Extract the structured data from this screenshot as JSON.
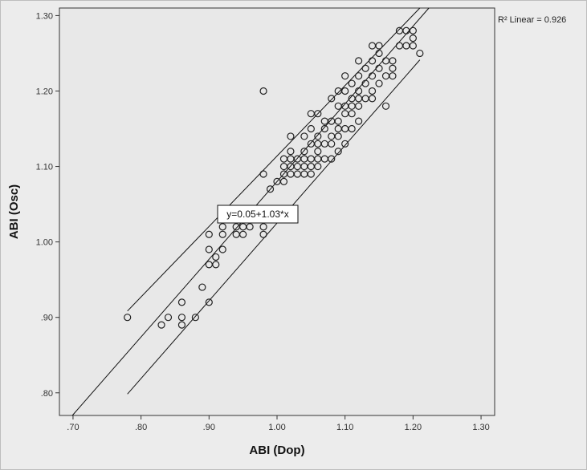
{
  "chart_data": {
    "type": "scatter",
    "xlabel": "ABI (Dop)",
    "ylabel": "ABI (Osc)",
    "xlim": [
      0.68,
      1.32
    ],
    "ylim": [
      0.77,
      1.31
    ],
    "x_ticks": [
      ".70",
      ".80",
      ".90",
      "1.00",
      "1.10",
      "1.20",
      "1.30"
    ],
    "y_ticks": [
      ".80",
      ".90",
      "1.00",
      "1.10",
      "1.20",
      "1.30"
    ],
    "r2_text": "R² Linear = 0.926",
    "equation": "y=0.05+1.03*x",
    "fit": {
      "intercept": 0.05,
      "slope": 1.03
    },
    "ci_offset": 0.055,
    "ci_x_range": [
      0.78,
      1.21
    ],
    "grid": false,
    "points": [
      [
        0.78,
        0.9
      ],
      [
        0.83,
        0.89
      ],
      [
        0.84,
        0.9
      ],
      [
        0.86,
        0.89
      ],
      [
        0.86,
        0.9
      ],
      [
        0.86,
        0.92
      ],
      [
        0.88,
        0.9
      ],
      [
        0.89,
        0.94
      ],
      [
        0.9,
        0.92
      ],
      [
        0.9,
        0.97
      ],
      [
        0.9,
        0.99
      ],
      [
        0.9,
        1.01
      ],
      [
        0.91,
        0.97
      ],
      [
        0.91,
        0.98
      ],
      [
        0.92,
        0.99
      ],
      [
        0.92,
        1.01
      ],
      [
        0.92,
        1.02
      ],
      [
        0.94,
        1.01
      ],
      [
        0.94,
        1.02
      ],
      [
        0.95,
        1.01
      ],
      [
        0.95,
        1.02
      ],
      [
        0.96,
        1.02
      ],
      [
        0.96,
        1.03
      ],
      [
        0.97,
        1.03
      ],
      [
        0.98,
        1.01
      ],
      [
        0.98,
        1.02
      ],
      [
        0.98,
        1.09
      ],
      [
        0.98,
        1.2
      ],
      [
        0.99,
        1.03
      ],
      [
        0.99,
        1.07
      ],
      [
        1.0,
        1.08
      ],
      [
        1.01,
        1.08
      ],
      [
        1.01,
        1.09
      ],
      [
        1.01,
        1.1
      ],
      [
        1.01,
        1.11
      ],
      [
        1.02,
        1.09
      ],
      [
        1.02,
        1.1
      ],
      [
        1.02,
        1.11
      ],
      [
        1.02,
        1.12
      ],
      [
        1.02,
        1.14
      ],
      [
        1.03,
        1.09
      ],
      [
        1.03,
        1.1
      ],
      [
        1.03,
        1.11
      ],
      [
        1.04,
        1.09
      ],
      [
        1.04,
        1.1
      ],
      [
        1.04,
        1.11
      ],
      [
        1.04,
        1.12
      ],
      [
        1.04,
        1.14
      ],
      [
        1.05,
        1.09
      ],
      [
        1.05,
        1.1
      ],
      [
        1.05,
        1.11
      ],
      [
        1.05,
        1.13
      ],
      [
        1.05,
        1.15
      ],
      [
        1.05,
        1.17
      ],
      [
        1.06,
        1.1
      ],
      [
        1.06,
        1.11
      ],
      [
        1.06,
        1.12
      ],
      [
        1.06,
        1.13
      ],
      [
        1.06,
        1.14
      ],
      [
        1.06,
        1.17
      ],
      [
        1.07,
        1.11
      ],
      [
        1.07,
        1.13
      ],
      [
        1.07,
        1.15
      ],
      [
        1.07,
        1.16
      ],
      [
        1.08,
        1.11
      ],
      [
        1.08,
        1.13
      ],
      [
        1.08,
        1.14
      ],
      [
        1.08,
        1.16
      ],
      [
        1.08,
        1.19
      ],
      [
        1.09,
        1.12
      ],
      [
        1.09,
        1.14
      ],
      [
        1.09,
        1.15
      ],
      [
        1.09,
        1.16
      ],
      [
        1.09,
        1.18
      ],
      [
        1.09,
        1.2
      ],
      [
        1.1,
        1.13
      ],
      [
        1.1,
        1.15
      ],
      [
        1.1,
        1.17
      ],
      [
        1.1,
        1.18
      ],
      [
        1.1,
        1.2
      ],
      [
        1.1,
        1.22
      ],
      [
        1.11,
        1.15
      ],
      [
        1.11,
        1.17
      ],
      [
        1.11,
        1.18
      ],
      [
        1.11,
        1.19
      ],
      [
        1.11,
        1.21
      ],
      [
        1.12,
        1.16
      ],
      [
        1.12,
        1.18
      ],
      [
        1.12,
        1.19
      ],
      [
        1.12,
        1.2
      ],
      [
        1.12,
        1.22
      ],
      [
        1.12,
        1.24
      ],
      [
        1.13,
        1.19
      ],
      [
        1.13,
        1.21
      ],
      [
        1.13,
        1.23
      ],
      [
        1.14,
        1.19
      ],
      [
        1.14,
        1.2
      ],
      [
        1.14,
        1.22
      ],
      [
        1.14,
        1.24
      ],
      [
        1.14,
        1.26
      ],
      [
        1.15,
        1.21
      ],
      [
        1.15,
        1.23
      ],
      [
        1.15,
        1.25
      ],
      [
        1.15,
        1.26
      ],
      [
        1.16,
        1.18
      ],
      [
        1.16,
        1.22
      ],
      [
        1.16,
        1.24
      ],
      [
        1.17,
        1.22
      ],
      [
        1.17,
        1.23
      ],
      [
        1.17,
        1.24
      ],
      [
        1.18,
        1.26
      ],
      [
        1.18,
        1.28
      ],
      [
        1.19,
        1.26
      ],
      [
        1.19,
        1.28
      ],
      [
        1.2,
        1.26
      ],
      [
        1.2,
        1.27
      ],
      [
        1.2,
        1.28
      ],
      [
        1.21,
        1.25
      ]
    ]
  }
}
